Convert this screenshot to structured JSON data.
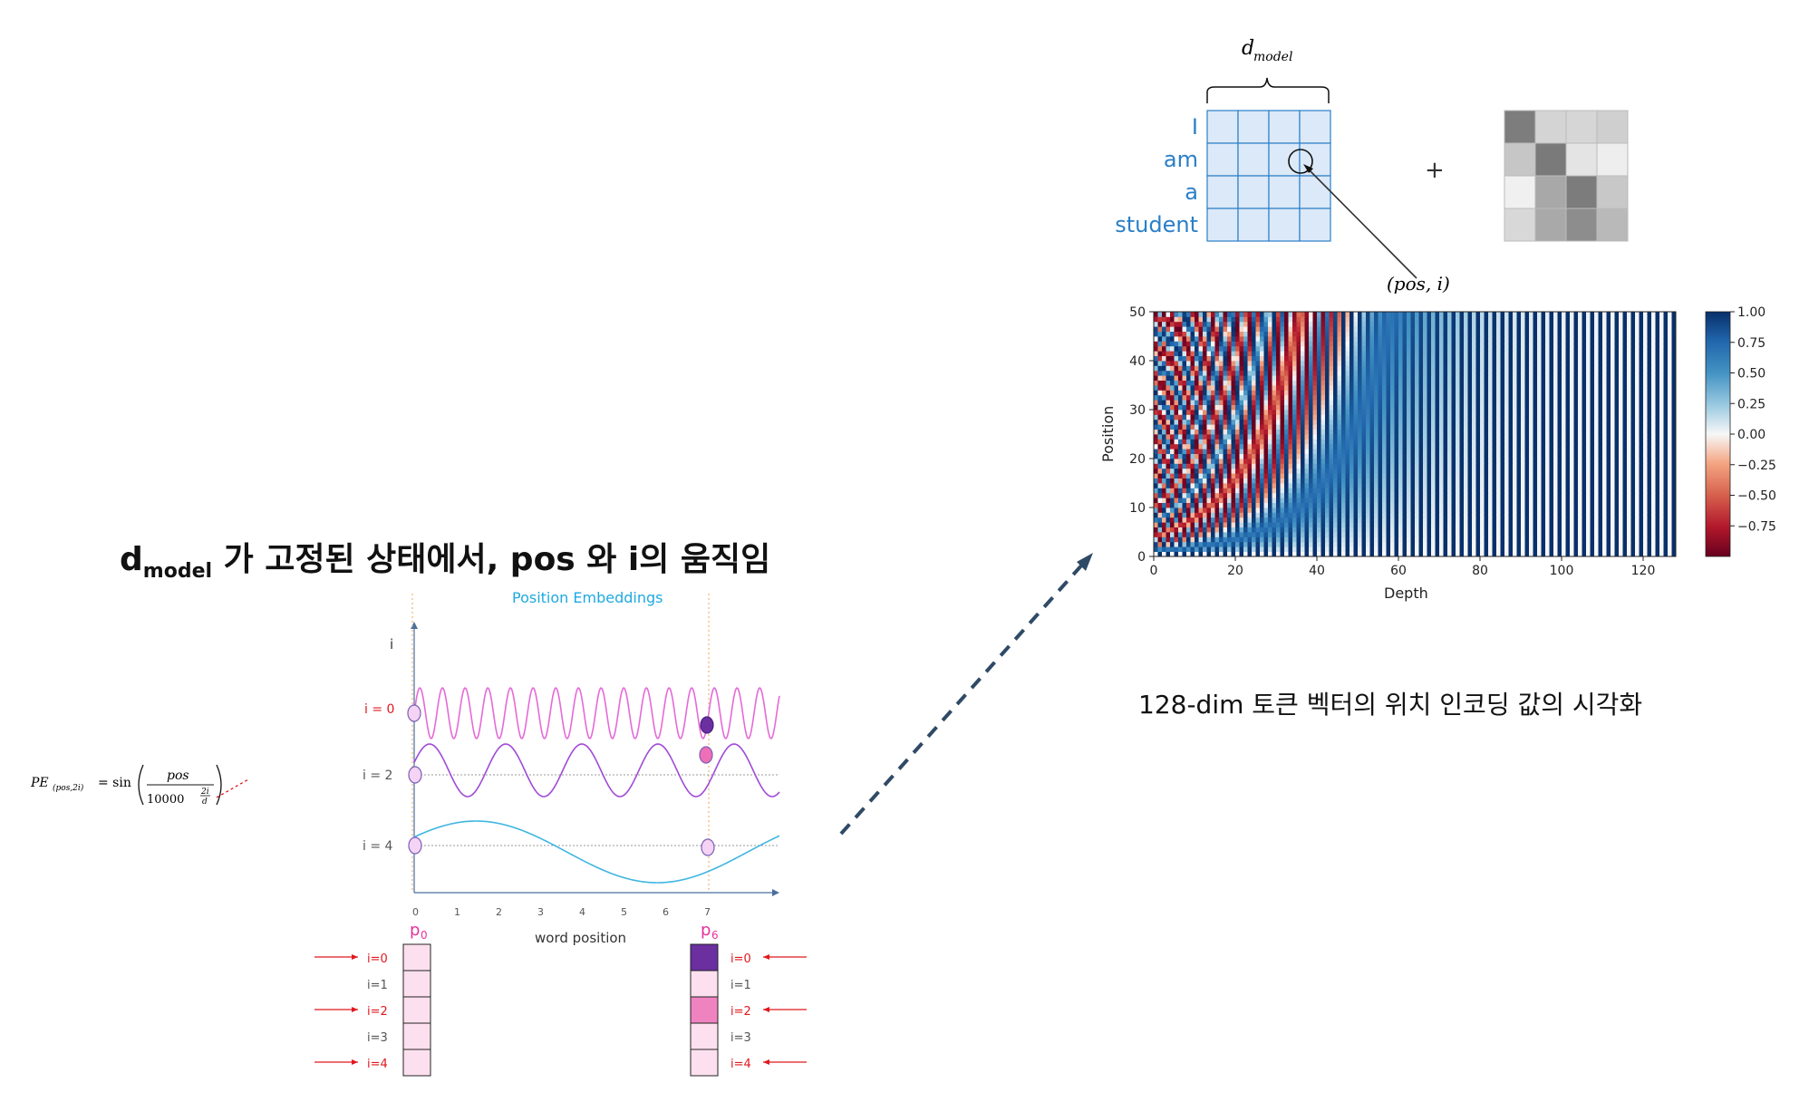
{
  "section_title": {
    "d": "d",
    "model_sub": "model",
    "rest": " 가 고정된 상태에서, pos 와 i의 움직임"
  },
  "formula": {
    "lhs": "PE",
    "lhs_sub": "(pos,2i)",
    "eq": "= sin",
    "numerator": "pos",
    "denominator": "10000",
    "exponent_num": "2i",
    "exponent_den": "d"
  },
  "pos_emb": {
    "title": "Position Embeddings",
    "y_axis_label": "i",
    "x_axis_label": "word position",
    "x_ticks": [
      "0",
      "1",
      "2",
      "3",
      "4",
      "5",
      "6",
      "7"
    ],
    "row_labels": [
      "i = 0",
      "i = 2",
      "i = 4"
    ],
    "vector_left_title_main": "p",
    "vector_left_title_sub": "0",
    "vector_right_title_main": "p",
    "vector_right_title_sub": "6",
    "vector_rows": [
      "i=0",
      "i=1",
      "i=2",
      "i=3",
      "i=4"
    ],
    "highlight_rows": [
      true,
      false,
      true,
      false,
      true
    ],
    "colors": {
      "i0_wave": "#e56ad8",
      "i2_wave": "#a04ad8",
      "i4_wave": "#3fb6e0",
      "title": "#1ea9e0",
      "label_red": "#e0181e",
      "dot_dark": "#6b2fa0",
      "dot_pink": "#ee6fb5"
    },
    "right_cells": [
      "#6b2fa0",
      "#fde0ef",
      "#ef83bf",
      "#fde0ef",
      "#fde0ef"
    ],
    "left_cells": [
      "#fde0ef",
      "#fde0ef",
      "#fde0ef",
      "#fde0ef",
      "#fde0ef"
    ]
  },
  "embedding_grid": {
    "d_model_label_main": "d",
    "d_model_label_sub": "model",
    "words": [
      "I",
      "am",
      "a",
      "student"
    ],
    "plus": "+",
    "pos_i_label": "(pos, i)",
    "word_color": "#2a7fc8",
    "right_grid_shades": [
      [
        "#7d7d7d",
        "#d4d4d4",
        "#d6d6d6",
        "#cfcfcf"
      ],
      [
        "#c6c6c6",
        "#7a7a7a",
        "#e4e4e4",
        "#eeeeee"
      ],
      [
        "#f0f0f0",
        "#a8a8a8",
        "#7c7c7c",
        "#c8c8c8"
      ],
      [
        "#d8d8d8",
        "#a9a9a9",
        "#8d8d8d",
        "#b9b9b9"
      ]
    ]
  },
  "heatmap": {
    "ylabel": "Position",
    "xlabel": "Depth",
    "x_ticks": [
      "0",
      "20",
      "40",
      "60",
      "80",
      "100",
      "120"
    ],
    "y_ticks": [
      "0",
      "10",
      "20",
      "30",
      "40",
      "50"
    ],
    "colorbar_ticks": [
      "1.00",
      "0.75",
      "0.50",
      "0.25",
      "0.00",
      "−0.25",
      "−0.50",
      "−0.75"
    ],
    "caption": "128-dim 토큰 벡터의 위치 인코딩 값의 시각화"
  },
  "chart_data": {
    "type": "heatmap",
    "title": "",
    "xlabel": "Depth",
    "ylabel": "Position",
    "xlim": [
      0,
      128
    ],
    "ylim": [
      0,
      50
    ],
    "colorbar": {
      "min": -1.0,
      "max": 1.0,
      "colormap": "RdBu"
    },
    "rows": 50,
    "cols": 128
  }
}
